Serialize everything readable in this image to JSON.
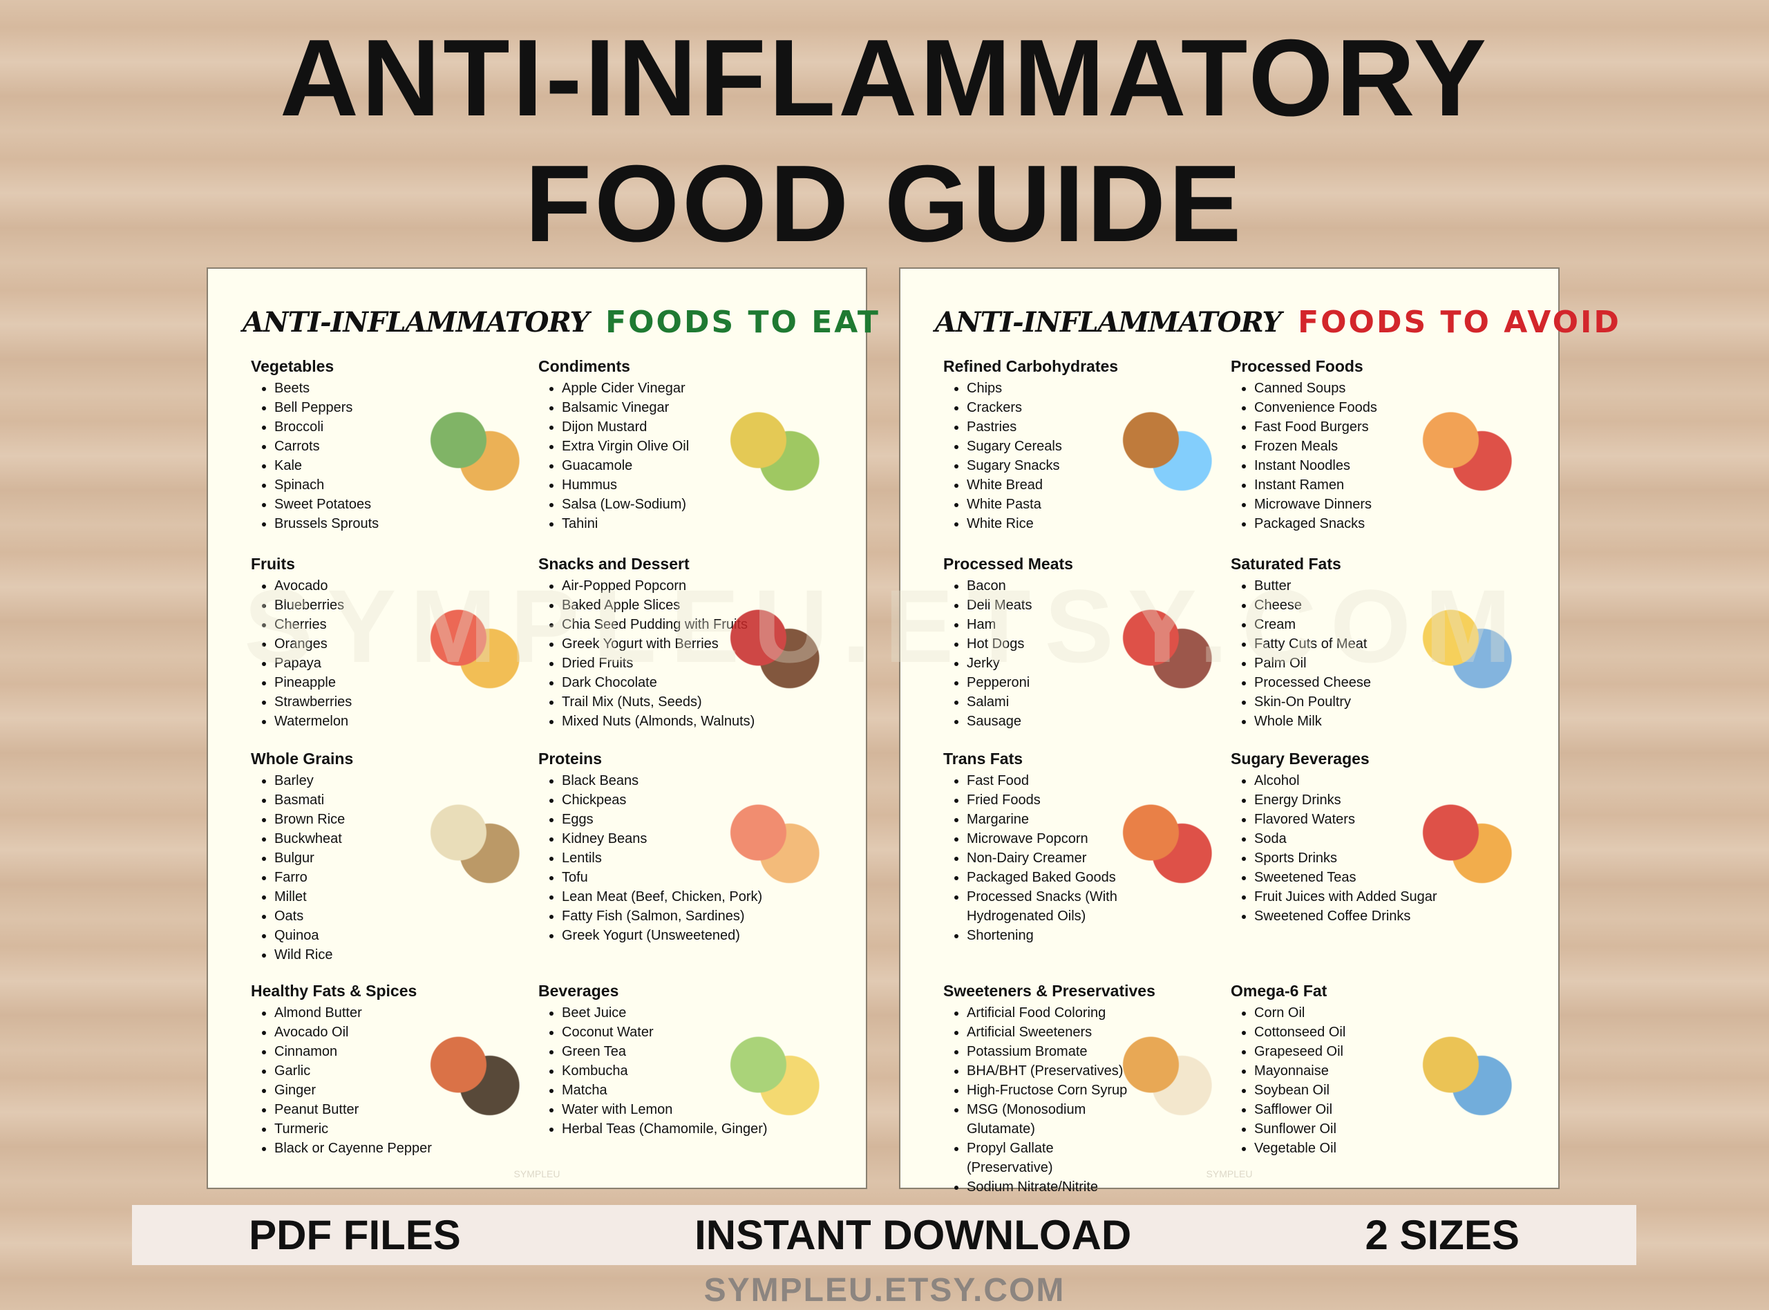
{
  "header": {
    "title_lines": [
      "ANTI-INFLAMMATORY",
      "FOOD GUIDE"
    ]
  },
  "watermark": "SYMPLEU.ETSY.COM",
  "sheets": [
    {
      "script": "ANTI-INFLAMMATORY",
      "heading": "FOODS TO EAT",
      "mark": "SYMPLEU",
      "sections": [
        {
          "title": "Vegetables",
          "items": [
            "Beets",
            "Bell Peppers",
            "Broccoli",
            "Carrots",
            "Kale",
            "Spinach",
            "Sweet Potatoes",
            "Brussels Sprouts"
          ]
        },
        {
          "title": "Condiments",
          "items": [
            "Apple Cider Vinegar",
            "Balsamic Vinegar",
            "Dijon Mustard",
            "Extra Virgin Olive Oil",
            "Guacamole",
            "Hummus",
            "Salsa (Low-Sodium)",
            "Tahini"
          ]
        },
        {
          "title": "Fruits",
          "items": [
            "Avocado",
            "Blueberries",
            "Cherries",
            "Oranges",
            "Papaya",
            "Pineapple",
            "Strawberries",
            "Watermelon"
          ]
        },
        {
          "title": "Snacks and Dessert",
          "items": [
            "Air-Popped Popcorn",
            "Baked Apple Slices",
            "Chia Seed Pudding with Fruits",
            "Greek Yogurt with Berries",
            "Dried Fruits",
            "Dark Chocolate",
            "Trail Mix (Nuts, Seeds)",
            "Mixed Nuts (Almonds, Walnuts)"
          ]
        },
        {
          "title": "Whole Grains",
          "items": [
            "Barley",
            "Basmati",
            "Brown Rice",
            "Buckwheat",
            "Bulgur",
            "Farro",
            "Millet",
            "Oats",
            "Quinoa",
            "Wild Rice"
          ]
        },
        {
          "title": "Proteins",
          "items": [
            "Black Beans",
            "Chickpeas",
            "Eggs",
            "Kidney Beans",
            "Lentils",
            "Tofu",
            "Lean Meat (Beef, Chicken, Pork)",
            "Fatty Fish (Salmon, Sardines)",
            "Greek Yogurt (Unsweetened)"
          ]
        },
        {
          "title": "Healthy Fats & Spices",
          "items": [
            "Almond Butter",
            "Avocado Oil",
            "Cinnamon",
            "Garlic",
            "Ginger",
            "Peanut Butter",
            "Turmeric",
            "Black or Cayenne Pepper"
          ]
        },
        {
          "title": "Beverages",
          "items": [
            "Beet Juice",
            "Coconut Water",
            "Green Tea",
            "Kombucha",
            "Matcha",
            "Water with Lemon",
            "Herbal Teas (Chamomile, Ginger)"
          ]
        }
      ]
    },
    {
      "script": "ANTI-INFLAMMATORY",
      "heading": "FOODS TO AVOID",
      "mark": "SYMPLEU",
      "sections": [
        {
          "title": "Refined Carbohydrates",
          "items": [
            "Chips",
            "Crackers",
            "Pastries",
            "Sugary Cereals",
            "Sugary Snacks",
            "White Bread",
            "White Pasta",
            "White Rice"
          ]
        },
        {
          "title": "Processed Foods",
          "items": [
            "Canned Soups",
            "Convenience Foods",
            "Fast Food Burgers",
            "Frozen Meals",
            "Instant Noodles",
            "Instant Ramen",
            "Microwave Dinners",
            "Packaged Snacks"
          ]
        },
        {
          "title": "Processed Meats",
          "items": [
            "Bacon",
            "Deli Meats",
            "Ham",
            "Hot Dogs",
            "Jerky",
            "Pepperoni",
            "Salami",
            "Sausage"
          ]
        },
        {
          "title": "Saturated Fats",
          "items": [
            "Butter",
            "Cheese",
            "Cream",
            "Fatty Cuts of Meat",
            "Palm Oil",
            "Processed Cheese",
            "Skin-On Poultry",
            "Whole Milk"
          ]
        },
        {
          "title": "Trans Fats",
          "items": [
            "Fast Food",
            "Fried Foods",
            "Margarine",
            "Microwave Popcorn",
            "Non-Dairy Creamer",
            "Packaged Baked Goods",
            "Processed Snacks (With Hydrogenated Oils)",
            "Shortening"
          ]
        },
        {
          "title": "Sugary Beverages",
          "items": [
            "Alcohol",
            "Energy Drinks",
            "Flavored Waters",
            "Soda",
            "Sports Drinks",
            "Sweetened Teas",
            "Fruit Juices with Added Sugar",
            "Sweetened Coffee Drinks"
          ]
        },
        {
          "title": "Sweeteners & Preservatives",
          "items": [
            "Artificial Food Coloring",
            "Artificial Sweeteners",
            "Potassium Bromate",
            "BHA/BHT (Preservatives)",
            "High-Fructose Corn Syrup",
            "MSG (Monosodium Glutamate)",
            "Propyl Gallate (Preservative)",
            "Sodium Nitrate/Nitrite"
          ]
        },
        {
          "title": "Omega-6 Fat",
          "items": [
            "Corn Oil",
            "Cottonseed Oil",
            "Grapeseed Oil",
            "Mayonnaise",
            "Soybean Oil",
            "Safflower Oil",
            "Sunflower Oil",
            "Vegetable Oil"
          ]
        }
      ]
    }
  ],
  "footer": {
    "badges": [
      "PDF FILES",
      "INSTANT DOWNLOAD",
      "2 SIZES"
    ],
    "site": "SYMPLEU.ETSY.COM"
  }
}
